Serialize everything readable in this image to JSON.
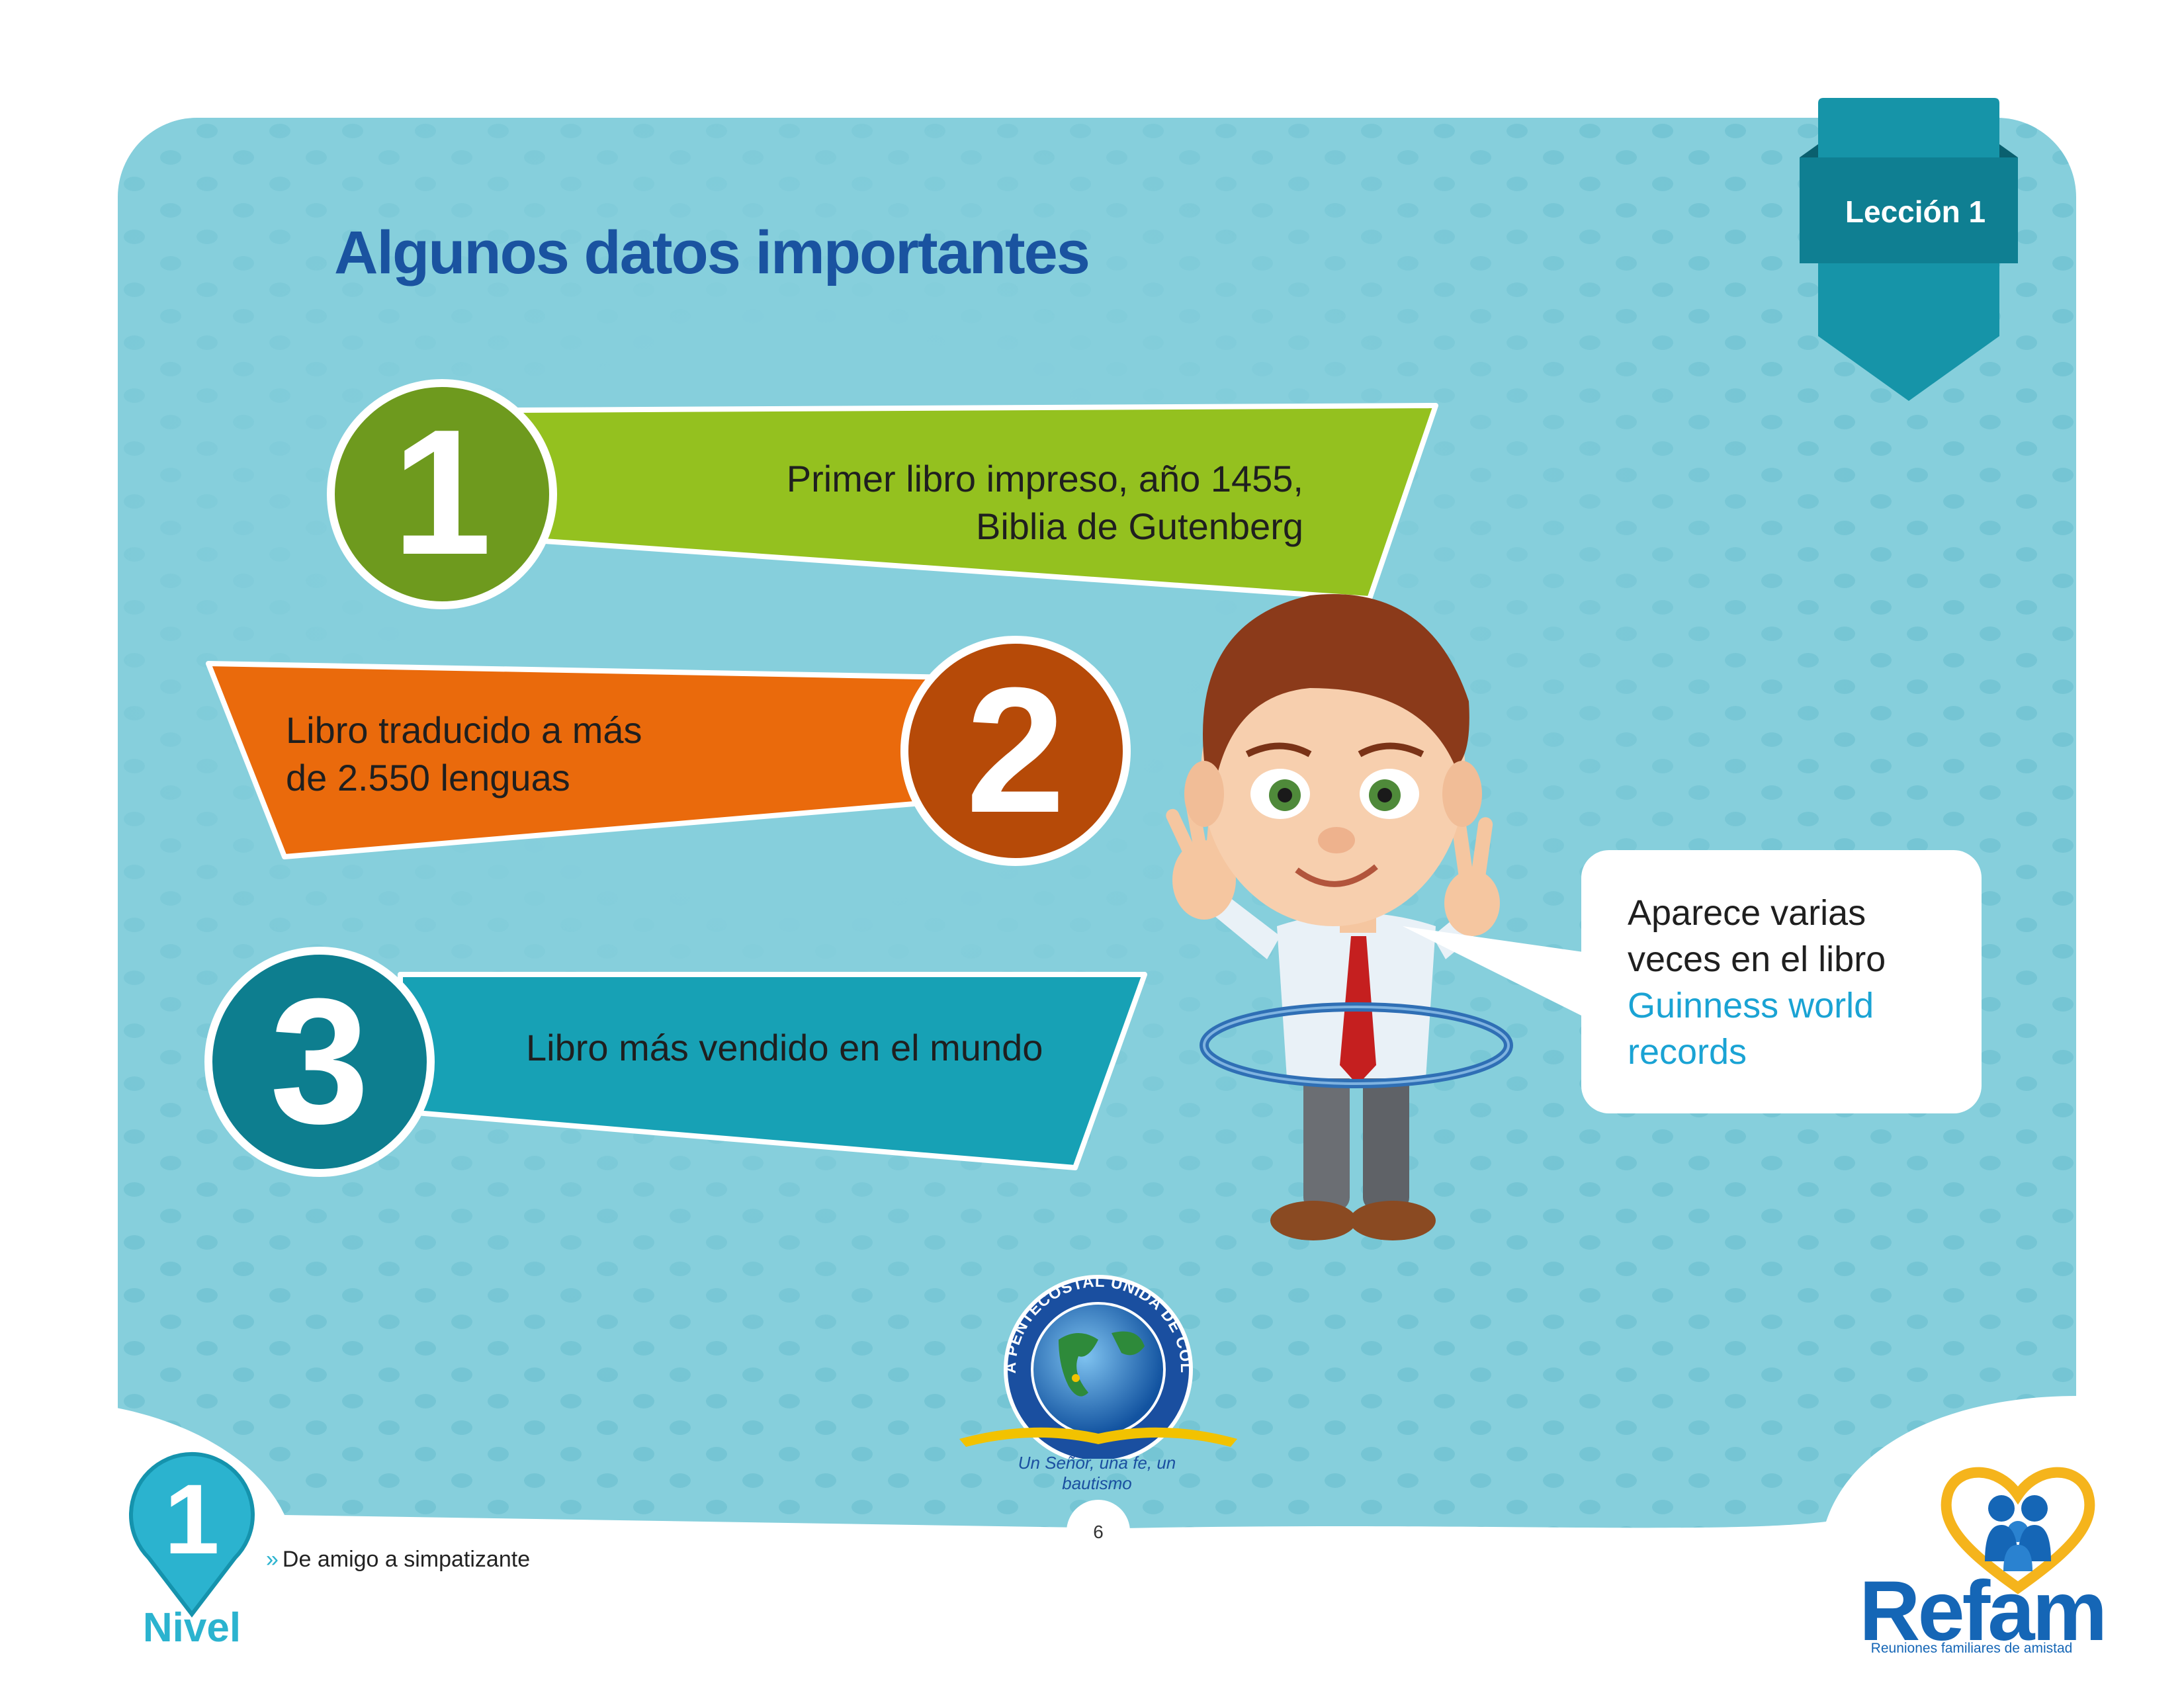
{
  "header": {
    "title": "Algunos datos importantes",
    "lesson_badge": "Lección 1"
  },
  "facts": [
    {
      "number": "1",
      "text_line1": "Primer libro impreso, año 1455,",
      "text_line2": "Biblia de Gutenberg",
      "color": "#94c11f",
      "circle_color": "#6e9a1e"
    },
    {
      "number": "2",
      "text_line1": "Libro traducido a más",
      "text_line2": "de 2.550 lenguas",
      "color": "#ea6a0c",
      "circle_color": "#b64a08"
    },
    {
      "number": "3",
      "text_line1": "Libro más vendido en el mundo",
      "text_line2": "",
      "color": "#17a1b5",
      "circle_color": "#0d7e8f"
    }
  ],
  "speech_bubble": {
    "line1": "Aparece varias",
    "line2": "veces en el libro",
    "highlight_line1": "Guinness world",
    "highlight_line2": "records",
    "highlight_color": "#1aa3d4"
  },
  "seal": {
    "ring_text": "IGLESIA PENTECOSTAL UNIDA DE COLOMBIA",
    "motto": "Un Señor, una fe, un bautismo"
  },
  "footer": {
    "page_number": "6",
    "level_number": "1",
    "level_label": "Nivel",
    "breadcrumb_chevron": "»",
    "breadcrumb_text": "De amigo a simpatizante",
    "brand_name": "Refam",
    "brand_tagline": "Reuniones familiares de amistad"
  },
  "colors": {
    "panel": "#86cfdc",
    "title": "#1a53a0",
    "badge": "#1694a8",
    "accent": "#2bb3cf"
  }
}
